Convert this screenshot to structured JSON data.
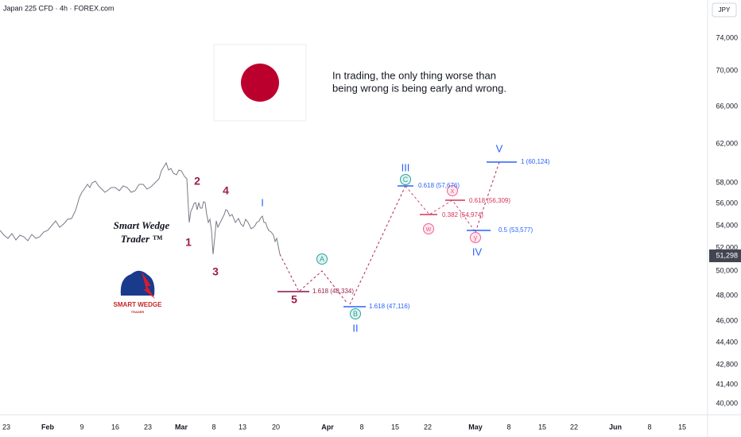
{
  "header": {
    "symbol": "Japan 225 CFD · 4h · FOREX.com",
    "currency": "JPY"
  },
  "quote": [
    "In trading, the only thing worse than",
    "being wrong is being early and wrong."
  ],
  "price_axis": [
    "74,000",
    "70,000",
    "66,000",
    "62,000",
    "58,000",
    "56,000",
    "54,000",
    "52,000",
    "50,000",
    "48,000",
    "46,000",
    "44,400",
    "42,800",
    "41,400",
    "40,000"
  ],
  "current_price": "51,298",
  "time_axis": [
    "23",
    "Feb",
    "9",
    "16",
    "23",
    "Mar",
    "8",
    "13",
    "20",
    "Apr",
    "8",
    "15",
    "22",
    "May",
    "8",
    "15",
    "22",
    "Jun",
    "8",
    "15"
  ],
  "waves": [
    "1",
    "2",
    "3",
    "4",
    "5",
    "I",
    "II",
    "III",
    "IV",
    "V"
  ],
  "circled": [
    "A",
    "B",
    "C",
    "w",
    "x",
    "y"
  ],
  "levels": [
    "1.618 (48,334)",
    "1.618 (47,116)",
    "0.618 (57,676)",
    "0.382 (54,974)",
    "0.618 (56,309)",
    "0.5 (53,577)",
    "1 (60,124)"
  ],
  "watermark": [
    "Smart Wedge",
    "Trader ™"
  ],
  "logo": [
    "SMART WEDGE",
    "TRADER"
  ]
}
